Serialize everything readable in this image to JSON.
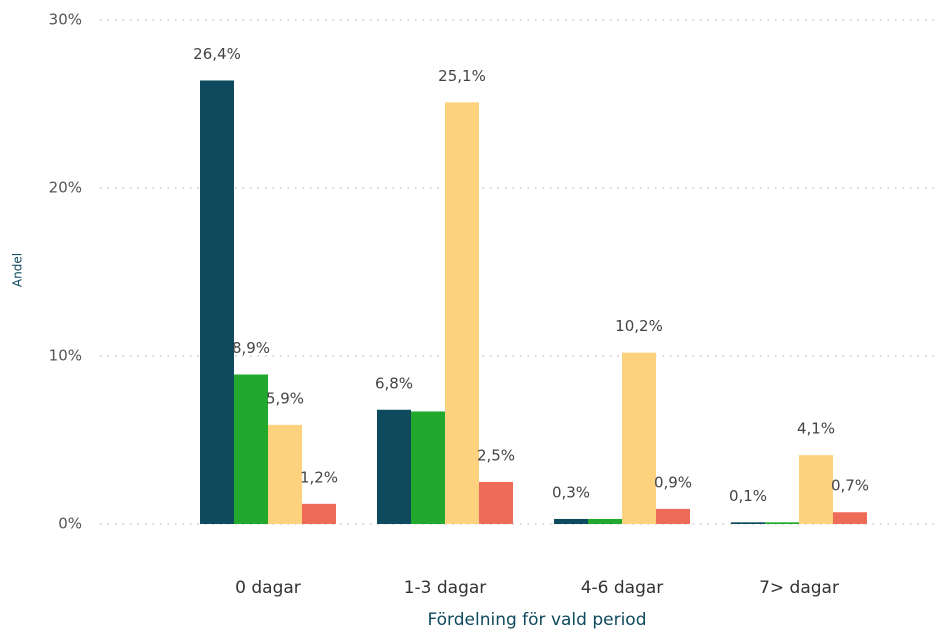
{
  "chart_data": {
    "type": "bar",
    "y_label": "Andel",
    "x_label": "Fördelning för vald period",
    "categories": [
      "0 dagar",
      "1-3 dagar",
      "4-6 dagar",
      "7> dagar"
    ],
    "series": [
      {
        "color": "#0e4a5d",
        "values": [
          26.4,
          6.8,
          0.3,
          0.1
        ],
        "value_labels": [
          "26,4%",
          "6,8%",
          "0,3%",
          "0,1%"
        ]
      },
      {
        "color": "#22a82c",
        "values": [
          8.9,
          6.7,
          0.3,
          0.1
        ],
        "value_labels": [
          "8,9%",
          null,
          null,
          null
        ]
      },
      {
        "color": "#fcd27f",
        "values": [
          5.9,
          25.1,
          10.2,
          4.1
        ],
        "value_labels": [
          "5,9%",
          "25,1%",
          "10,2%",
          "4,1%"
        ]
      },
      {
        "color": "#ee6b57",
        "values": [
          1.2,
          2.5,
          0.9,
          0.7
        ],
        "value_labels": [
          "1,2%",
          "2,5%",
          "0,9%",
          "0,7%"
        ]
      }
    ],
    "ylim": [
      0,
      30
    ],
    "yticks": [
      {
        "value": 0,
        "label": "0%"
      },
      {
        "value": 10,
        "label": "10%"
      },
      {
        "value": 20,
        "label": "20%"
      },
      {
        "value": 30,
        "label": "30%"
      }
    ],
    "grid": true
  }
}
